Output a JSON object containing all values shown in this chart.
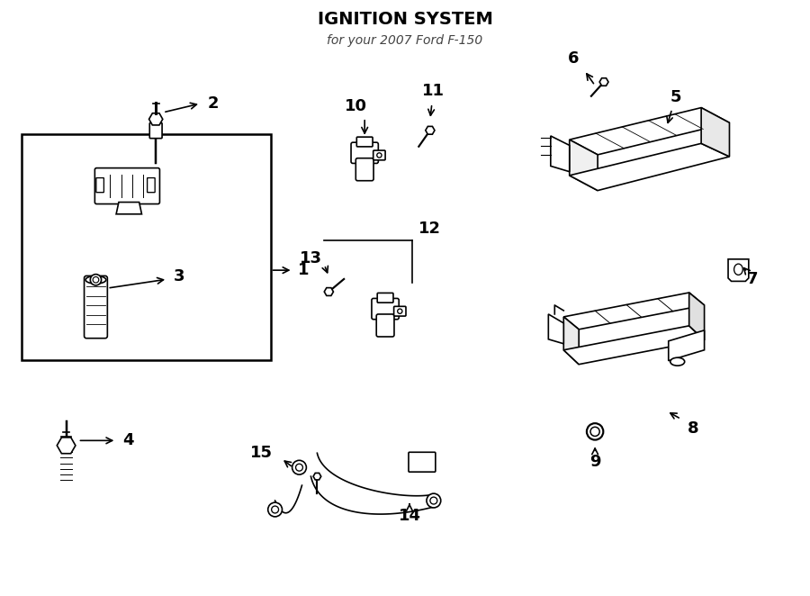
{
  "title": "IGNITION SYSTEM",
  "subtitle": "for your 2007 Ford F-150",
  "bg_color": "#ffffff",
  "line_color": "#000000",
  "fig_width": 9.0,
  "fig_height": 6.62
}
